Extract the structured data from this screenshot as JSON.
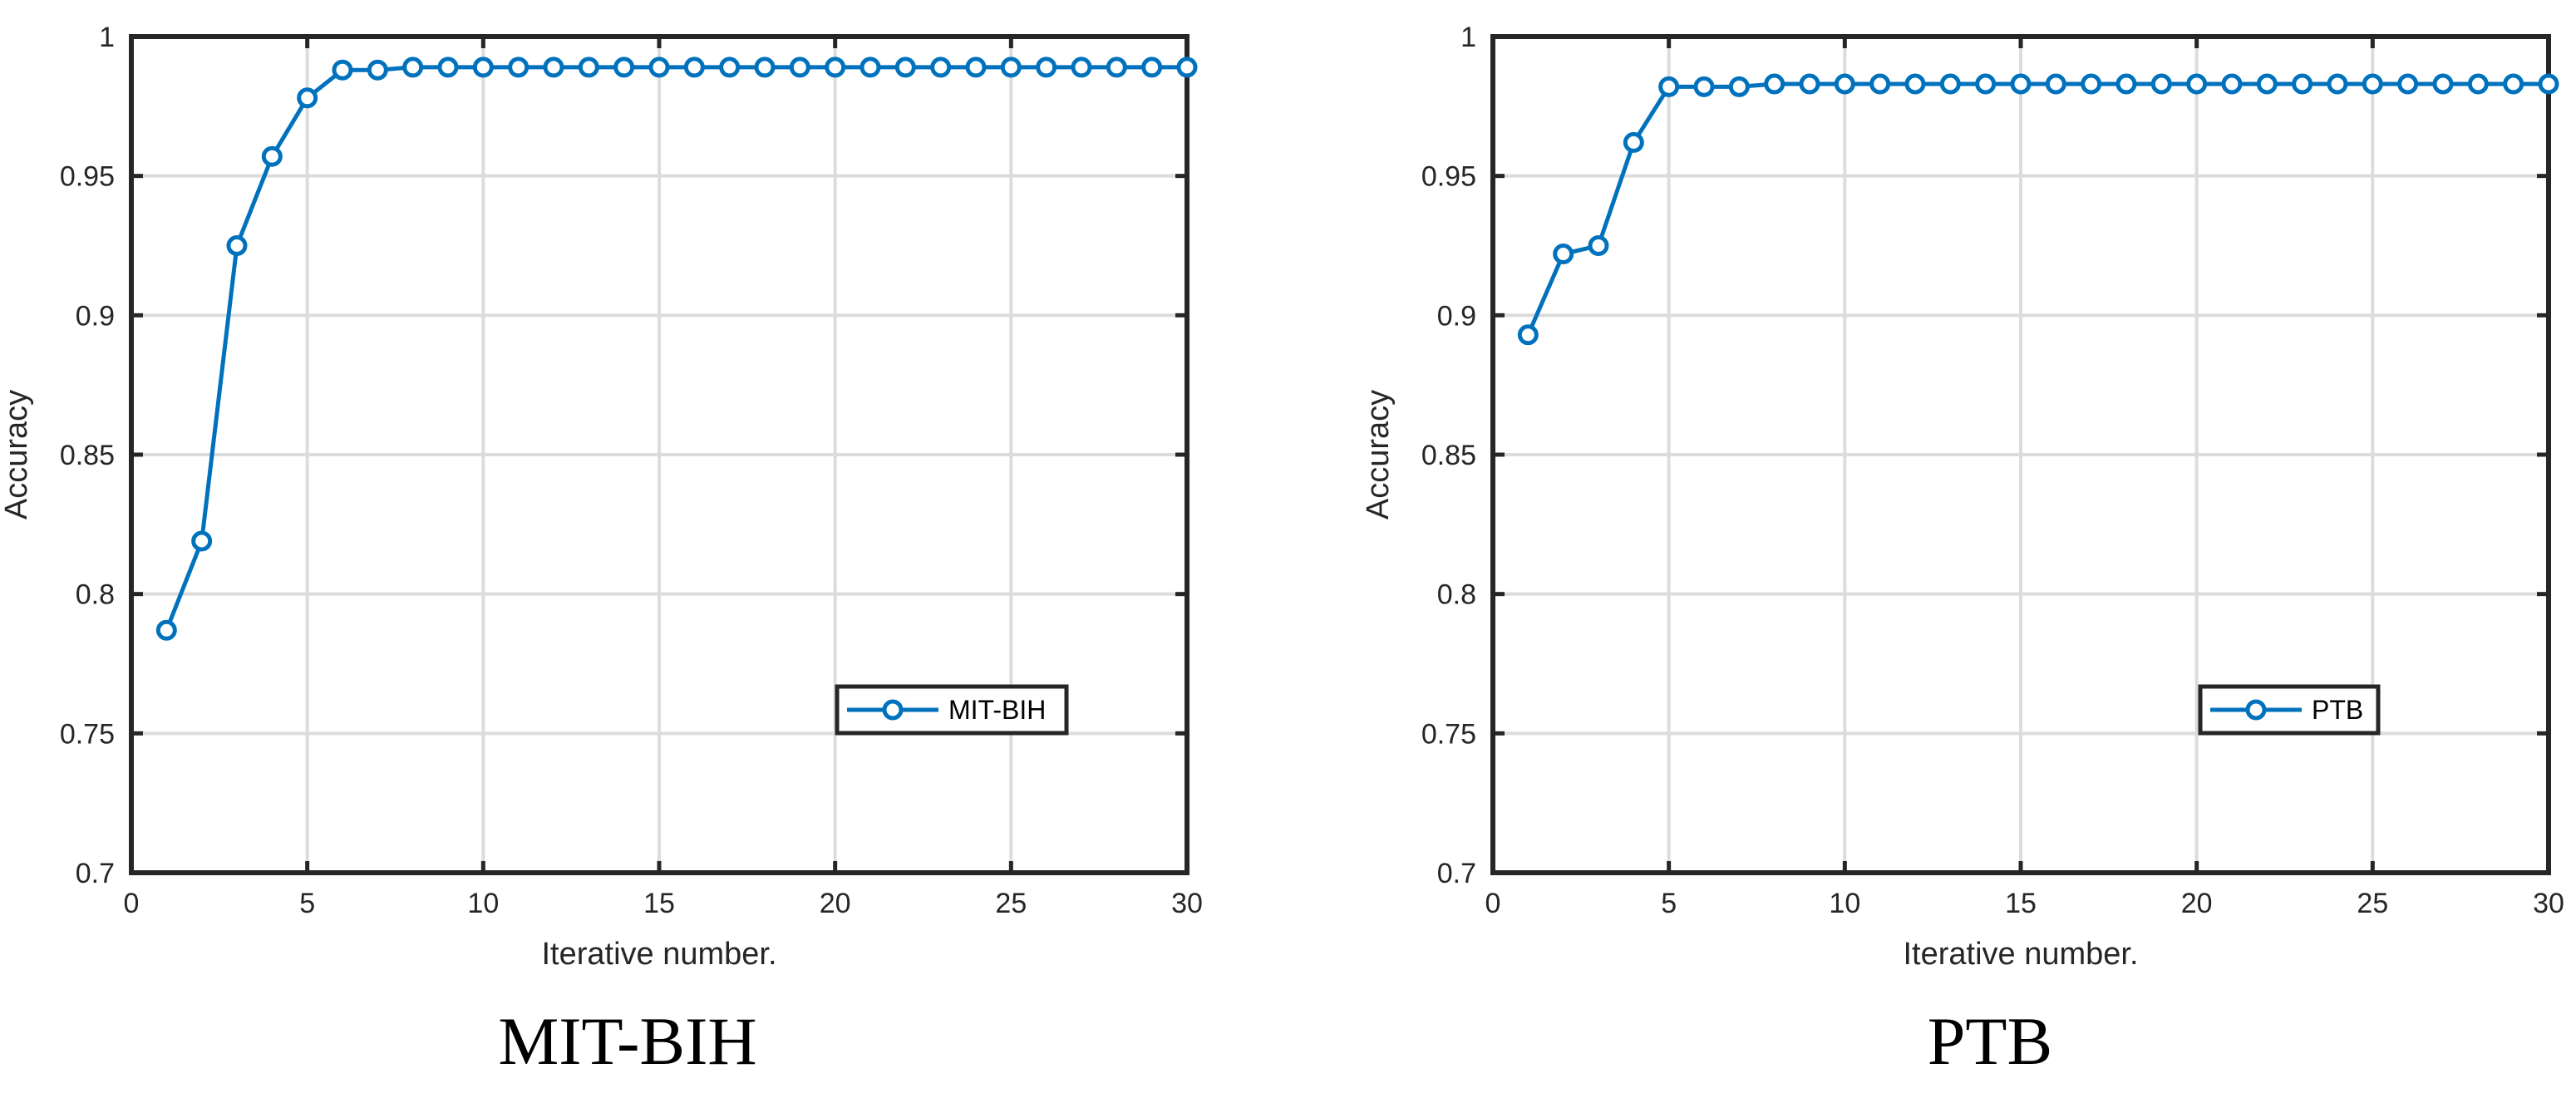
{
  "colors": {
    "series": "#0072BD",
    "grid": "#dcdcdc",
    "axis": "#262626"
  },
  "chart_data": [
    {
      "type": "line",
      "caption": "MIT-BIH",
      "xlabel": "Iterative number.",
      "ylabel": "Accuracy",
      "xlim": [
        0,
        30
      ],
      "ylim": [
        0.7,
        1
      ],
      "xticks": [
        0,
        5,
        10,
        15,
        20,
        25,
        30
      ],
      "yticks": [
        "0.7",
        "0.75",
        "0.8",
        "0.85",
        "0.9",
        "0.95",
        "1"
      ],
      "grid": true,
      "legend_position": "bottom-right",
      "marker": "circle",
      "series": [
        {
          "name": "MIT-BIH",
          "x": [
            1,
            2,
            3,
            4,
            5,
            6,
            7,
            8,
            9,
            10,
            11,
            12,
            13,
            14,
            15,
            16,
            17,
            18,
            19,
            20,
            21,
            22,
            23,
            24,
            25,
            26,
            27,
            28,
            29,
            30
          ],
          "values": [
            0.787,
            0.819,
            0.925,
            0.957,
            0.978,
            0.988,
            0.988,
            0.989,
            0.989,
            0.989,
            0.989,
            0.989,
            0.989,
            0.989,
            0.989,
            0.989,
            0.989,
            0.989,
            0.989,
            0.989,
            0.989,
            0.989,
            0.989,
            0.989,
            0.989,
            0.989,
            0.989,
            0.989,
            0.989,
            0.989
          ]
        }
      ]
    },
    {
      "type": "line",
      "caption": "PTB",
      "xlabel": "Iterative number.",
      "ylabel": "Accuracy",
      "xlim": [
        0,
        30
      ],
      "ylim": [
        0.7,
        1
      ],
      "xticks": [
        0,
        5,
        10,
        15,
        20,
        25,
        30
      ],
      "yticks": [
        "0.7",
        "0.75",
        "0.8",
        "0.85",
        "0.9",
        "0.95",
        "1"
      ],
      "grid": true,
      "legend_position": "bottom-right",
      "marker": "circle",
      "series": [
        {
          "name": "PTB",
          "x": [
            1,
            2,
            3,
            4,
            5,
            6,
            7,
            8,
            9,
            10,
            11,
            12,
            13,
            14,
            15,
            16,
            17,
            18,
            19,
            20,
            21,
            22,
            23,
            24,
            25,
            26,
            27,
            28,
            29,
            30
          ],
          "values": [
            0.893,
            0.922,
            0.925,
            0.962,
            0.982,
            0.982,
            0.982,
            0.983,
            0.983,
            0.983,
            0.983,
            0.983,
            0.983,
            0.983,
            0.983,
            0.983,
            0.983,
            0.983,
            0.983,
            0.983,
            0.983,
            0.983,
            0.983,
            0.983,
            0.983,
            0.983,
            0.983,
            0.983,
            0.983,
            0.983
          ]
        }
      ]
    }
  ]
}
